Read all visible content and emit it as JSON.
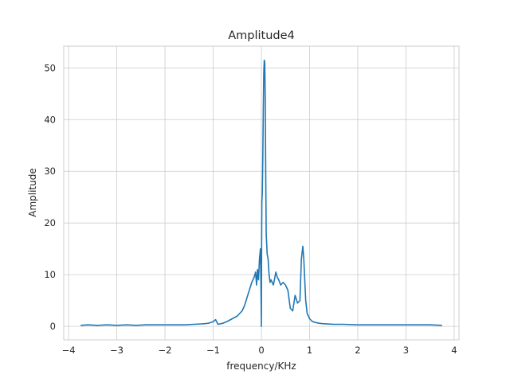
{
  "chart_data": {
    "type": "line",
    "title": "Amplitude4",
    "xlabel": "frequency/KHz",
    "ylabel": "Amplitude",
    "xlim": [
      -4.1,
      4.1
    ],
    "ylim": [
      -2.6,
      54.2
    ],
    "xticks": [
      -4,
      -3,
      -2,
      -1,
      0,
      1,
      2,
      3,
      4
    ],
    "yticks": [
      0,
      10,
      20,
      30,
      40,
      50
    ],
    "grid": true,
    "legend": "none",
    "series": [
      {
        "color": "#1f77b4",
        "x": [
          -3.75,
          -3.6,
          -3.4,
          -3.2,
          -3.0,
          -2.8,
          -2.6,
          -2.4,
          -2.2,
          -2.0,
          -1.8,
          -1.6,
          -1.4,
          -1.2,
          -1.1,
          -1.0,
          -0.95,
          -0.9,
          -0.85,
          -0.8,
          -0.7,
          -0.6,
          -0.5,
          -0.4,
          -0.35,
          -0.3,
          -0.25,
          -0.2,
          -0.15,
          -0.12,
          -0.1,
          -0.08,
          -0.06,
          -0.04,
          -0.02,
          -0.01,
          0.0,
          0.005,
          0.01,
          0.02,
          0.03,
          0.04,
          0.05,
          0.06,
          0.07,
          0.08,
          0.09,
          0.1,
          0.12,
          0.14,
          0.16,
          0.18,
          0.2,
          0.25,
          0.3,
          0.33,
          0.36,
          0.4,
          0.45,
          0.5,
          0.55,
          0.6,
          0.65,
          0.7,
          0.75,
          0.8,
          0.83,
          0.86,
          0.88,
          0.9,
          0.92,
          0.95,
          1.0,
          1.05,
          1.1,
          1.2,
          1.3,
          1.5,
          1.7,
          2.0,
          2.5,
          3.0,
          3.5,
          3.75
        ],
        "y": [
          0.2,
          0.3,
          0.2,
          0.3,
          0.2,
          0.3,
          0.2,
          0.3,
          0.3,
          0.3,
          0.3,
          0.3,
          0.4,
          0.5,
          0.6,
          0.9,
          1.3,
          0.4,
          0.5,
          0.6,
          1.0,
          1.5,
          2.0,
          3.0,
          4.0,
          5.5,
          7.0,
          8.5,
          9.5,
          10.5,
          8.0,
          11.0,
          9.0,
          13.0,
          15.0,
          9.0,
          0.0,
          15.0,
          24.0,
          26.0,
          33.0,
          42.0,
          49.0,
          51.5,
          51.0,
          44.0,
          30.0,
          18.0,
          14.0,
          13.0,
          10.0,
          8.5,
          9.0,
          8.0,
          10.5,
          9.5,
          9.0,
          8.0,
          8.5,
          8.0,
          7.0,
          3.5,
          3.0,
          6.0,
          4.5,
          5.0,
          13.0,
          15.5,
          13.0,
          9.0,
          5.0,
          2.5,
          1.5,
          1.0,
          0.8,
          0.6,
          0.5,
          0.4,
          0.4,
          0.3,
          0.3,
          0.3,
          0.3,
          0.2
        ]
      }
    ]
  }
}
